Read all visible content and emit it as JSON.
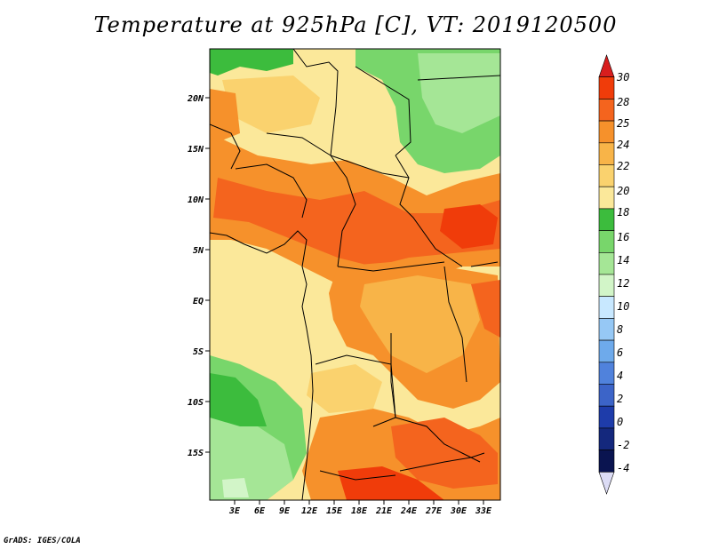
{
  "title": "Temperature at 925hPa [C], VT: 2019120500",
  "footer": "GrADS: IGES/COLA",
  "map": {
    "lat_labels": [
      "20N",
      "15N",
      "10N",
      "5N",
      "EQ",
      "5S",
      "10S",
      "15S"
    ],
    "lon_labels": [
      "3E",
      "6E",
      "9E",
      "12E",
      "15E",
      "18E",
      "21E",
      "24E",
      "27E",
      "30E",
      "33E"
    ]
  },
  "colorbar": {
    "labels": [
      "30",
      "28",
      "25",
      "24",
      "22",
      "20",
      "18",
      "16",
      "14",
      "12",
      "10",
      "8",
      "6",
      "4",
      "2",
      "0",
      "-2",
      "-4"
    ],
    "colors": [
      "#d81e1e",
      "#f03c0a",
      "#f4641e",
      "#f6912b",
      "#f8b448",
      "#fad26e",
      "#fbe89a",
      "#3cbc3d",
      "#78d66b",
      "#a5e696",
      "#d2f5c8",
      "#c8e8ff",
      "#96c8f5",
      "#6eaaeb",
      "#5082dc",
      "#3c64c8",
      "#1e3caa",
      "#14287d",
      "#0a1450",
      "#dcdcf5"
    ]
  }
}
